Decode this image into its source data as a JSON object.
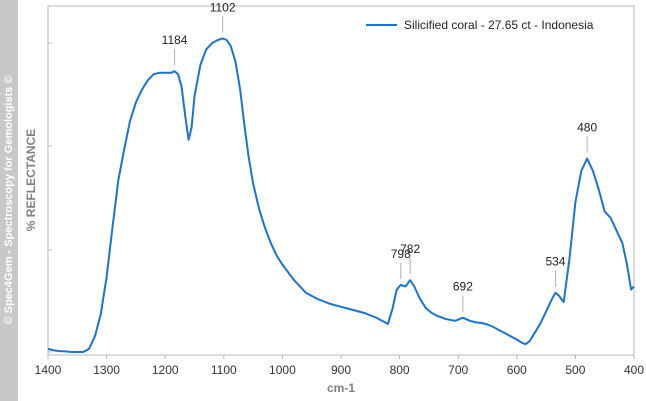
{
  "watermark": "© Spec4Gem - Spectroscopy for Gemologists ©",
  "chart_data": {
    "type": "line",
    "title": "",
    "xlabel": "cm-1",
    "ylabel": "% REFLECTANCE",
    "xlim": [
      1400,
      400
    ],
    "ylim": [
      0,
      100
    ],
    "x_reversed": true,
    "grid": false,
    "legend_position": "top-right",
    "xticks": [
      1400,
      1300,
      1200,
      1100,
      1000,
      900,
      800,
      700,
      600,
      500,
      400
    ],
    "series": [
      {
        "name": "Silicified coral - 27.65 ct - Indonesia",
        "color": "#1a73d6",
        "x": [
          1400,
          1390,
          1380,
          1370,
          1360,
          1350,
          1340,
          1330,
          1320,
          1310,
          1300,
          1290,
          1280,
          1270,
          1260,
          1250,
          1240,
          1230,
          1220,
          1210,
          1200,
          1190,
          1184,
          1178,
          1172,
          1166,
          1160,
          1155,
          1150,
          1140,
          1130,
          1120,
          1110,
          1102,
          1095,
          1088,
          1080,
          1072,
          1065,
          1058,
          1050,
          1040,
          1030,
          1020,
          1010,
          1000,
          980,
          960,
          940,
          920,
          900,
          880,
          860,
          840,
          830,
          820,
          812,
          805,
          798,
          790,
          782,
          775,
          765,
          755,
          745,
          735,
          720,
          705,
          692,
          680,
          670,
          660,
          650,
          640,
          630,
          620,
          610,
          600,
          592,
          585,
          578,
          570,
          560,
          550,
          540,
          534,
          528,
          520,
          510,
          500,
          490,
          480,
          470,
          460,
          450,
          440,
          430,
          420,
          412,
          405,
          400
        ],
        "values": [
          1.0,
          0.5,
          0.3,
          0.2,
          0.0,
          0.0,
          0.0,
          1.0,
          5.0,
          12.0,
          24.0,
          40.0,
          55.0,
          65.0,
          74.0,
          80.0,
          84.0,
          87.0,
          89.0,
          89.5,
          89.5,
          89.5,
          90.0,
          89.0,
          85.0,
          76.0,
          68.0,
          72.0,
          82.0,
          92.0,
          97.0,
          99.0,
          100.0,
          100.5,
          100.0,
          98.0,
          93.0,
          84.0,
          73.0,
          63.0,
          54.0,
          46.0,
          40.0,
          35.0,
          31.0,
          28.0,
          23.0,
          19.0,
          17.0,
          15.5,
          14.5,
          13.5,
          12.5,
          11.0,
          10.0,
          9.0,
          14.0,
          20.0,
          21.5,
          21.0,
          23.0,
          21.0,
          17.0,
          14.0,
          12.5,
          11.5,
          10.5,
          10.0,
          11.0,
          10.0,
          9.5,
          9.3,
          8.8,
          8.0,
          7.0,
          6.0,
          5.0,
          4.0,
          3.0,
          2.5,
          3.5,
          6.0,
          9.0,
          13.0,
          17.0,
          19.0,
          18.0,
          16.0,
          30.0,
          48.0,
          58.0,
          62.0,
          58.0,
          52.0,
          45.0,
          43.0,
          39.0,
          35.0,
          28.0,
          20.0,
          21.0
        ]
      }
    ],
    "annotations": [
      {
        "x": 1184,
        "y": 90.0,
        "label": "1184"
      },
      {
        "x": 1102,
        "y": 100.5,
        "label": "1102"
      },
      {
        "x": 798,
        "y": 21.5,
        "label": "798"
      },
      {
        "x": 782,
        "y": 23.0,
        "label": "782"
      },
      {
        "x": 692,
        "y": 11.0,
        "label": "692"
      },
      {
        "x": 534,
        "y": 19.0,
        "label": "534"
      },
      {
        "x": 480,
        "y": 62.0,
        "label": "480"
      }
    ]
  }
}
